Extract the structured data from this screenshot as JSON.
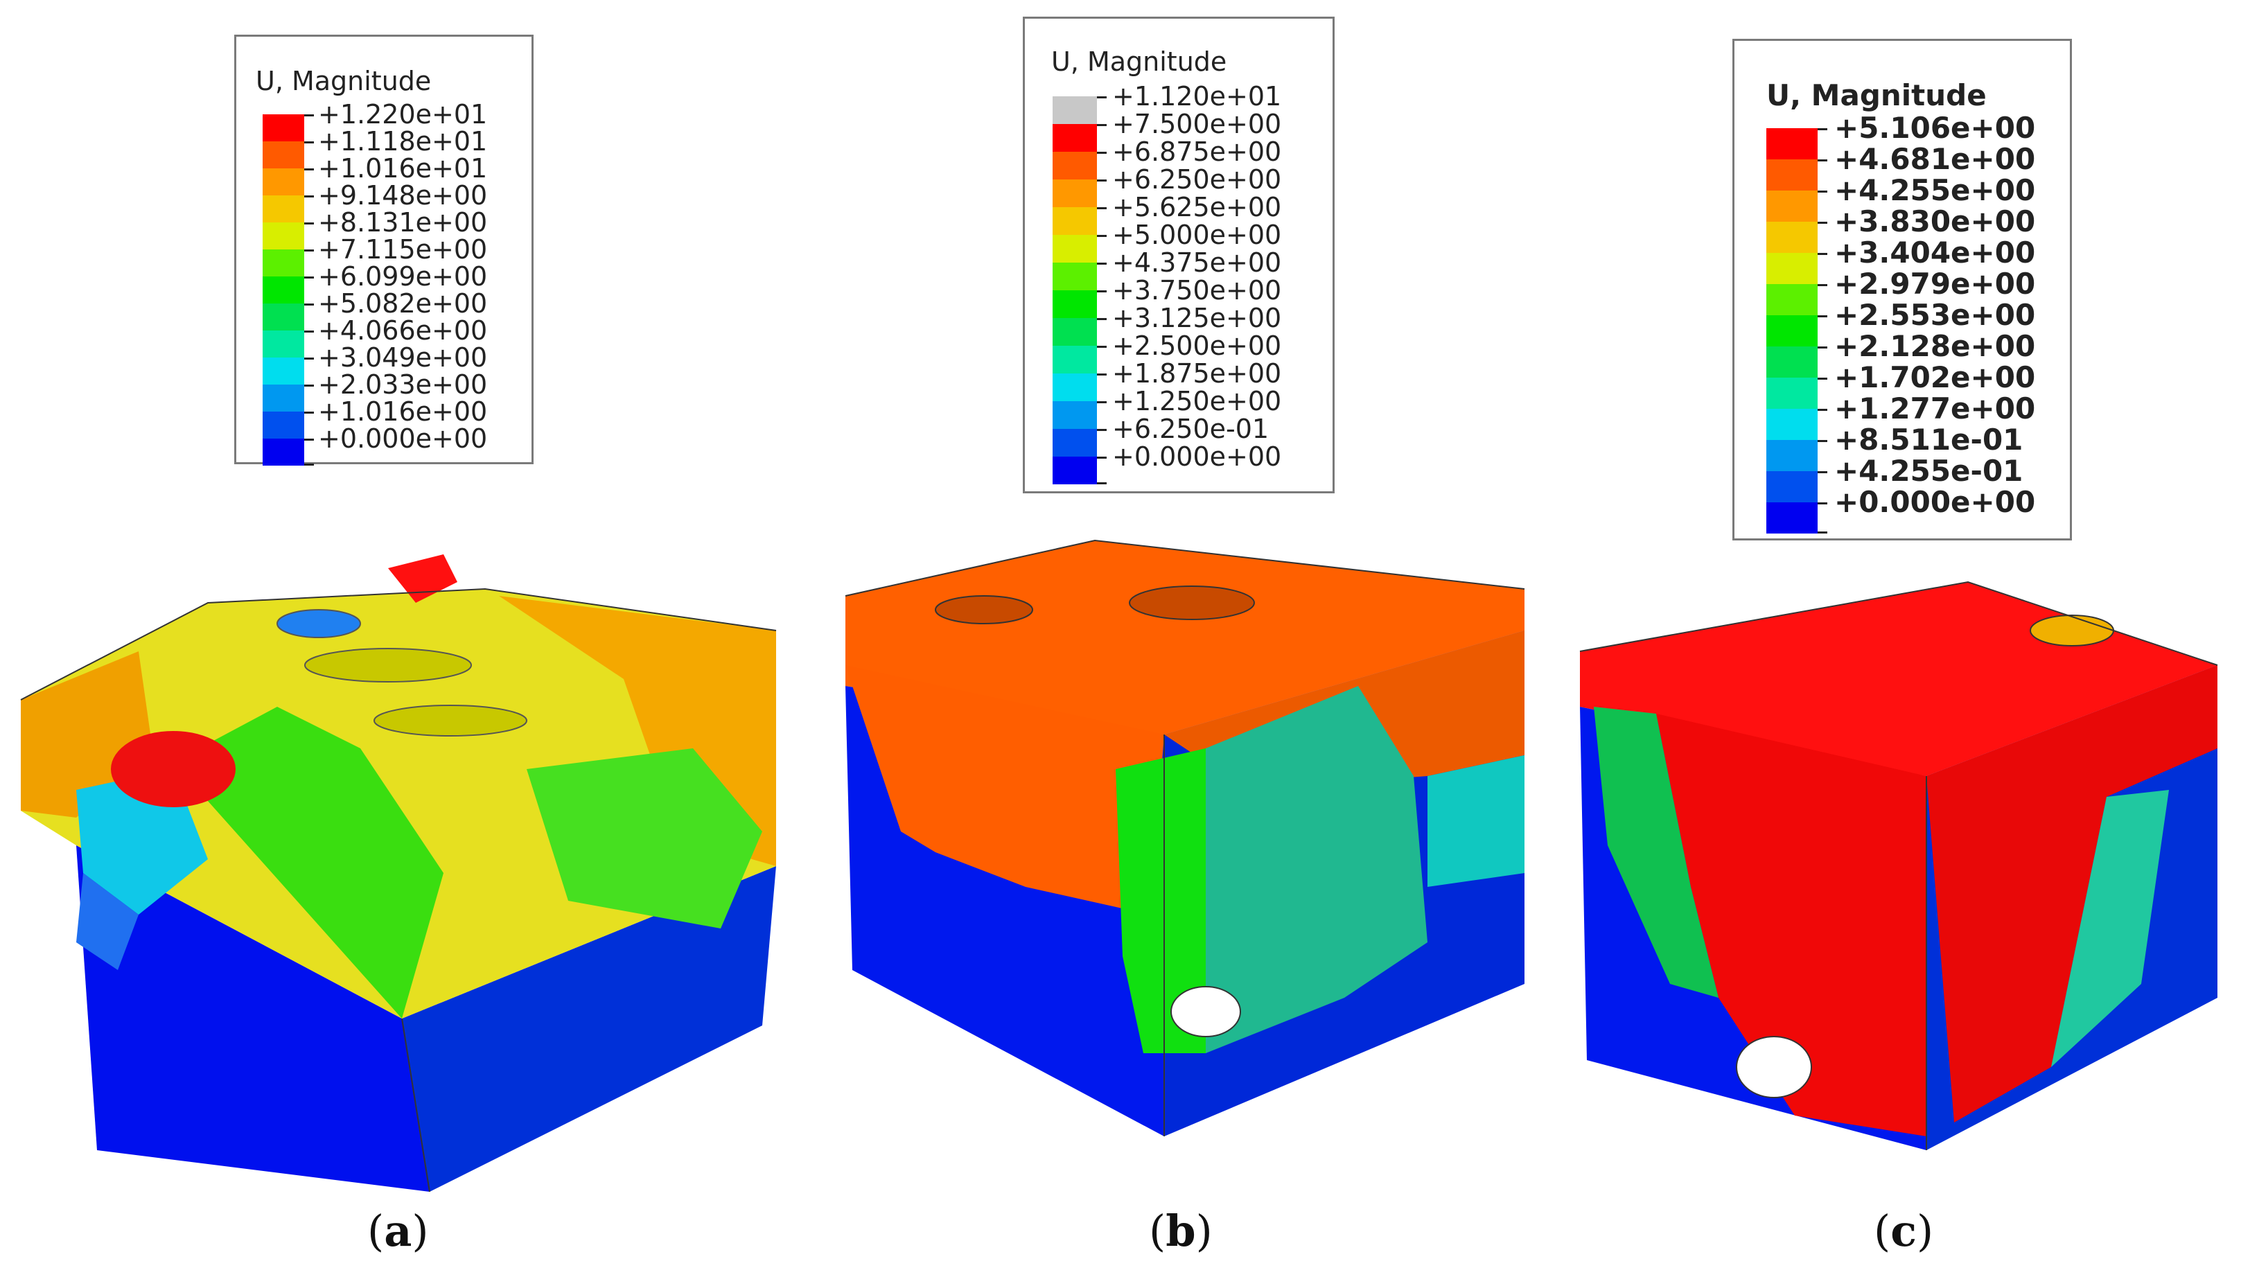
{
  "panels": [
    {
      "id": "a",
      "legend": {
        "title": "U, Magnitude",
        "entries": [
          {
            "value": "+1.220e+01",
            "color": "#ff0000"
          },
          {
            "value": "+1.118e+01",
            "color": "#ff5a00"
          },
          {
            "value": "+1.016e+01",
            "color": "#ff9800"
          },
          {
            "value": "+9.148e+00",
            "color": "#f5c800"
          },
          {
            "value": "+8.131e+00",
            "color": "#d8ee00"
          },
          {
            "value": "+7.115e+00",
            "color": "#5cf000"
          },
          {
            "value": "+6.099e+00",
            "color": "#00e600"
          },
          {
            "value": "+5.082e+00",
            "color": "#00e050"
          },
          {
            "value": "+4.066e+00",
            "color": "#00e8a0"
          },
          {
            "value": "+3.049e+00",
            "color": "#00ddee"
          },
          {
            "value": "+2.033e+00",
            "color": "#0098f0"
          },
          {
            "value": "+1.016e+00",
            "color": "#0050ee"
          },
          {
            "value": "+0.000e+00",
            "color": "#0000f0"
          }
        ]
      },
      "caption_letter": "a"
    },
    {
      "id": "b",
      "legend": {
        "title": "U, Magnitude",
        "entries": [
          {
            "value": "+1.120e+01",
            "color": "#c8c8c8"
          },
          {
            "value": "+7.500e+00",
            "color": "#ff0000"
          },
          {
            "value": "+6.875e+00",
            "color": "#ff5a00"
          },
          {
            "value": "+6.250e+00",
            "color": "#ff9800"
          },
          {
            "value": "+5.625e+00",
            "color": "#f5c800"
          },
          {
            "value": "+5.000e+00",
            "color": "#d8ee00"
          },
          {
            "value": "+4.375e+00",
            "color": "#5cf000"
          },
          {
            "value": "+3.750e+00",
            "color": "#00e600"
          },
          {
            "value": "+3.125e+00",
            "color": "#00e050"
          },
          {
            "value": "+2.500e+00",
            "color": "#00e8a0"
          },
          {
            "value": "+1.875e+00",
            "color": "#00ddee"
          },
          {
            "value": "+1.250e+00",
            "color": "#0098f0"
          },
          {
            "value": "+6.250e-01",
            "color": "#0050ee"
          },
          {
            "value": "+0.000e+00",
            "color": "#0000f0"
          }
        ]
      },
      "caption_letter": "b"
    },
    {
      "id": "c",
      "legend": {
        "title": "U, Magnitude",
        "entries": [
          {
            "value": "+5.106e+00",
            "color": "#ff0000"
          },
          {
            "value": "+4.681e+00",
            "color": "#ff5a00"
          },
          {
            "value": "+4.255e+00",
            "color": "#ff9800"
          },
          {
            "value": "+3.830e+00",
            "color": "#f5c800"
          },
          {
            "value": "+3.404e+00",
            "color": "#d8ee00"
          },
          {
            "value": "+2.979e+00",
            "color": "#5cf000"
          },
          {
            "value": "+2.553e+00",
            "color": "#00e600"
          },
          {
            "value": "+2.128e+00",
            "color": "#00e050"
          },
          {
            "value": "+1.702e+00",
            "color": "#00e8a0"
          },
          {
            "value": "+1.277e+00",
            "color": "#00ddee"
          },
          {
            "value": "+8.511e-01",
            "color": "#0098f0"
          },
          {
            "value": "+4.255e-01",
            "color": "#0050ee"
          },
          {
            "value": "+0.000e+00",
            "color": "#0000f0"
          }
        ]
      },
      "caption_letter": "c"
    }
  ]
}
